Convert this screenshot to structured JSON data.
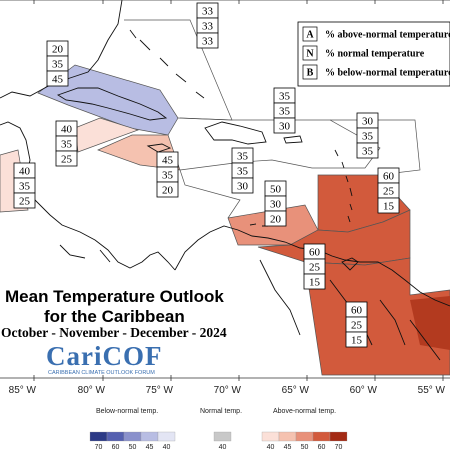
{
  "map": {
    "title_line1": "Mean Temperature Outlook",
    "title_line2": "for the Caribbean",
    "period": "October - November - December - 2024",
    "logo_name": "CariCOF",
    "logo_subtitle": "CARIBBEAN CLIMATE OUTLOOK FORUM",
    "longitude_labels": [
      "85° W",
      "80° W",
      "75° W",
      "70° W",
      "65° W",
      "60° W",
      "55° W"
    ]
  },
  "key": [
    {
      "letter": "A",
      "desc": "% above-normal temperature"
    },
    {
      "letter": "N",
      "desc": "% normal temperature"
    },
    {
      "letter": "B",
      "desc": "% below-normal temperature"
    }
  ],
  "zones": [
    {
      "id": "bahamas-east",
      "values": [
        "33",
        "33",
        "33"
      ]
    },
    {
      "id": "cuba",
      "values": [
        "20",
        "35",
        "45"
      ]
    },
    {
      "id": "yucatan",
      "values": [
        "40",
        "35",
        "25"
      ]
    },
    {
      "id": "belize",
      "values": [
        "40",
        "35",
        "25"
      ]
    },
    {
      "id": "jamaica",
      "values": [
        "45",
        "35",
        "20"
      ]
    },
    {
      "id": "hispaniola",
      "values": [
        "35",
        "35",
        "30"
      ]
    },
    {
      "id": "north-leewards",
      "values": [
        "30",
        "35",
        "35"
      ]
    },
    {
      "id": "central-caribbean",
      "values": [
        "35",
        "35",
        "30"
      ]
    },
    {
      "id": "abc-islands",
      "values": [
        "50",
        "30",
        "20"
      ]
    },
    {
      "id": "lesser-antilles",
      "values": [
        "60",
        "25",
        "15"
      ]
    },
    {
      "id": "trinidad",
      "values": [
        "60",
        "25",
        "15"
      ]
    },
    {
      "id": "guianas",
      "values": [
        "60",
        "25",
        "15"
      ]
    }
  ],
  "colors": {
    "below_35_40": "#d9dcf0",
    "below_40_50": "#b8bde3",
    "above_40_45": "#fbe0d8",
    "above_45_50": "#f5c2b0",
    "above_50_60": "#e8917a",
    "above_60_70": "#d25a3c",
    "above_70": "#b33a1f",
    "neutral": "#ffffff"
  },
  "scale": {
    "below_label": "Below-normal temp.",
    "normal_label": "Normal temp.",
    "above_label": "Above-normal temp.",
    "below_ticks": [
      "70",
      "60",
      "50",
      "45",
      "40"
    ],
    "normal_ticks": [
      "40"
    ],
    "above_ticks": [
      "40",
      "45",
      "50",
      "60",
      "70"
    ],
    "below_colors": [
      "#2c3a86",
      "#5560b0",
      "#8a91cc",
      "#b8bde3",
      "#e3e5f4"
    ],
    "normal_colors": [
      "#c8c8c8"
    ],
    "above_colors": [
      "#fbe0d8",
      "#f5c2b0",
      "#e8917a",
      "#d25a3c",
      "#a32a14"
    ]
  }
}
